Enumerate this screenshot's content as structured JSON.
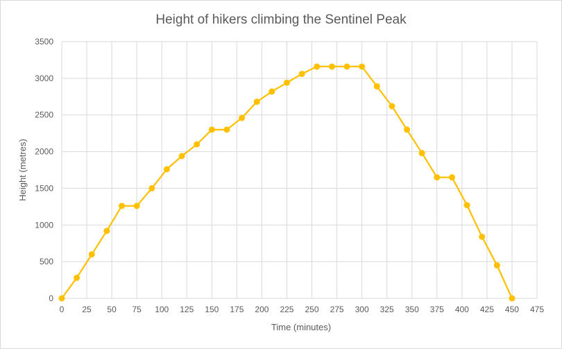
{
  "chart_data": {
    "type": "line",
    "title": "Height of hikers climbing the Sentinel Peak",
    "xlabel": "Time (minutes)",
    "ylabel": "Height (metres)",
    "xlim": [
      0,
      475
    ],
    "ylim": [
      0,
      3500
    ],
    "x_ticks": [
      "0",
      "25",
      "50",
      "75",
      "100",
      "125",
      "150",
      "175",
      "200",
      "225",
      "250",
      "275",
      "300",
      "325",
      "350",
      "375",
      "400",
      "425",
      "450",
      "475"
    ],
    "y_ticks": [
      "0",
      "500",
      "1000",
      "1500",
      "2000",
      "2500",
      "3000",
      "3500"
    ],
    "grid": true,
    "legend": "none",
    "color": "#FFC000",
    "x": [
      0,
      15,
      30,
      45,
      60,
      75,
      90,
      105,
      120,
      135,
      150,
      165,
      180,
      195,
      210,
      225,
      240,
      255,
      270,
      285,
      300,
      315,
      330,
      345,
      360,
      375,
      390,
      405,
      420,
      435,
      450
    ],
    "y": [
      0,
      280,
      600,
      920,
      1260,
      1260,
      1500,
      1760,
      1940,
      2100,
      2300,
      2300,
      2460,
      2680,
      2820,
      2940,
      3060,
      3160,
      3160,
      3160,
      3160,
      2890,
      2620,
      2300,
      1980,
      1650,
      1650,
      1270,
      840,
      450,
      0
    ]
  }
}
